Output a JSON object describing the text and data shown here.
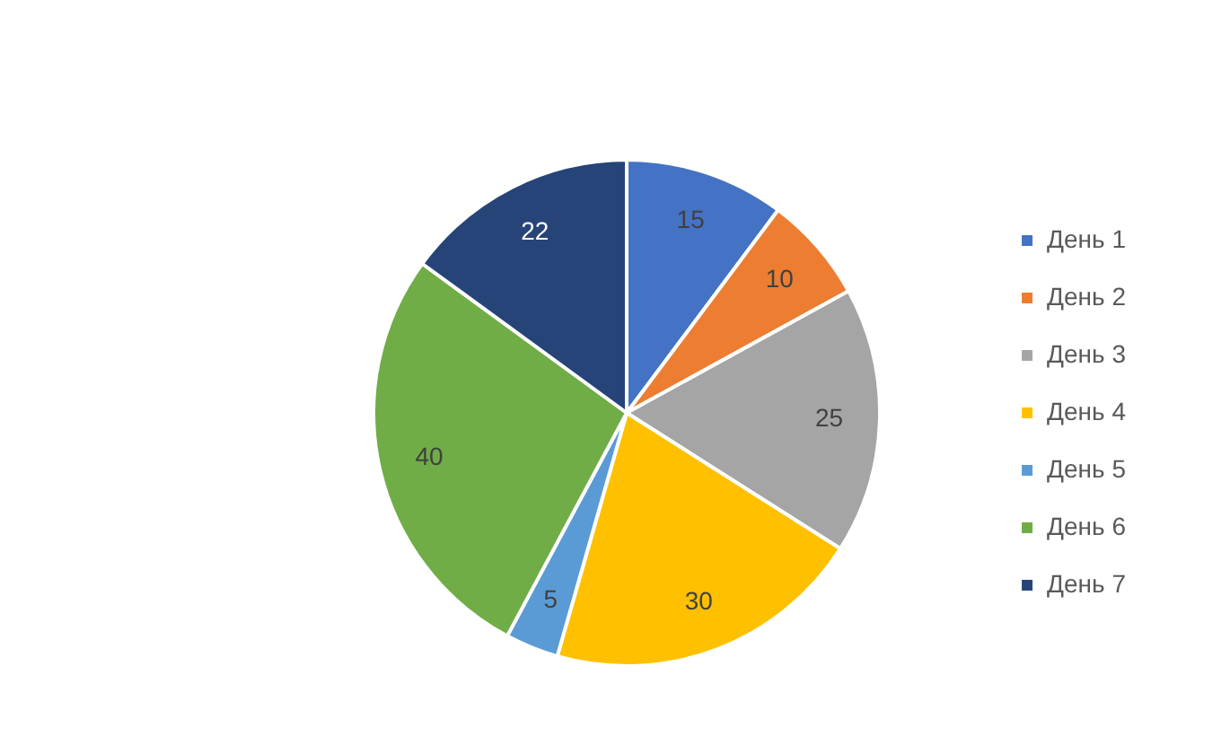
{
  "chart_data": {
    "type": "pie",
    "categories": [
      "День 1",
      "День 2",
      "День 3",
      "День 4",
      "День 5",
      "День 6",
      "День 7"
    ],
    "values": [
      15,
      10,
      25,
      30,
      5,
      40,
      22
    ],
    "colors": [
      "#4472c4",
      "#ed7d31",
      "#a5a5a5",
      "#ffc000",
      "#5b9bd5",
      "#70ad47",
      "#264478"
    ],
    "data_labels": true,
    "legend": "right"
  }
}
